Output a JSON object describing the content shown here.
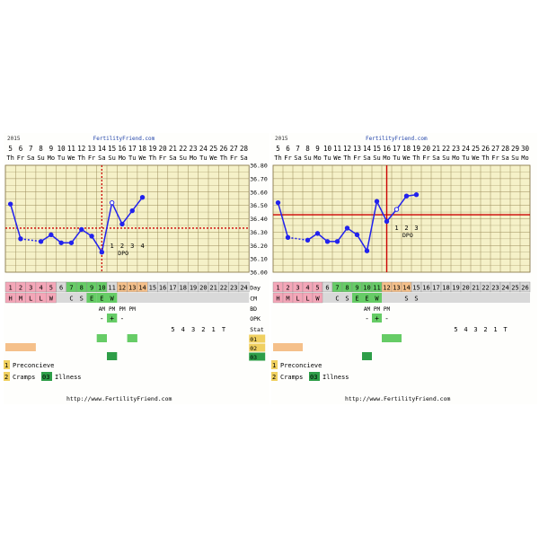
{
  "charts": [
    {
      "year_label": "2015",
      "site_header": "FertilityFriend.com",
      "date_numbers": [
        "5",
        "6",
        "7",
        "8",
        "9",
        "10",
        "11",
        "12",
        "13",
        "14",
        "15",
        "16",
        "17",
        "18",
        "19",
        "20",
        "21",
        "22",
        "23",
        "24",
        "25",
        "26",
        "27",
        "28"
      ],
      "weekdays": [
        "Th",
        "Fr",
        "Sa",
        "Su",
        "Mo",
        "Tu",
        "We",
        "Th",
        "Fr",
        "Sa",
        "Su",
        "Mo",
        "Tu",
        "We",
        "Th",
        "Fr",
        "Sa",
        "Su",
        "Mo",
        "Tu",
        "We",
        "Th",
        "Fr",
        "Sa"
      ],
      "temp_ticks": [
        "36.80",
        "36.70",
        "36.60",
        "36.50",
        "36.40",
        "36.30",
        "36.20",
        "36.10",
        "36.00"
      ],
      "day_numbers": [
        "1",
        "2",
        "3",
        "4",
        "5",
        "6",
        "7",
        "8",
        "9",
        "10",
        "11",
        "12",
        "13",
        "14",
        "15",
        "16",
        "17",
        "18",
        "19",
        "20",
        "21",
        "22",
        "23",
        "24"
      ],
      "row_labels": [
        "Day",
        "CM",
        "BD",
        "OPK",
        "Stat",
        "01",
        "02",
        "03"
      ],
      "menses": [
        "H",
        "M",
        "L",
        "L",
        "W"
      ],
      "cm": [
        "C",
        "S",
        "E",
        "E",
        "W"
      ],
      "bd": [
        "AM",
        "PM",
        "PM",
        "PM"
      ],
      "opk": [
        "-",
        "+",
        "-"
      ],
      "countdown": [
        "5",
        "4",
        "3",
        "2",
        "1",
        "T"
      ],
      "dpo_label": "DPO",
      "dpo_numbers": [
        "1",
        "2",
        "3",
        "4"
      ],
      "legend": {
        "num1": "1",
        "label1": "Preconcieve",
        "num2": "2",
        "label2": "Cramps",
        "num3": "03",
        "label3": "Illness"
      },
      "footer": "http://www.FertilityFriend.com"
    },
    {
      "year_label": "2015",
      "site_header": "FertilityFriend.com",
      "date_numbers": [
        "5",
        "6",
        "7",
        "8",
        "9",
        "10",
        "11",
        "12",
        "13",
        "14",
        "15",
        "16",
        "17",
        "18",
        "19",
        "20",
        "21",
        "22",
        "23",
        "24",
        "25",
        "26",
        "27",
        "28",
        "29",
        "30"
      ],
      "weekdays": [
        "Th",
        "Fr",
        "Sa",
        "Su",
        "Mo",
        "Tu",
        "We",
        "Th",
        "Fr",
        "Sa",
        "Su",
        "Mo",
        "Tu",
        "We",
        "Th",
        "Fr",
        "Sa",
        "Su",
        "Mo",
        "Tu",
        "We",
        "Th",
        "Fr",
        "Sa",
        "Su",
        "Mo"
      ],
      "temp_ticks": [],
      "day_numbers": [
        "1",
        "2",
        "3",
        "4",
        "5",
        "6",
        "7",
        "8",
        "9",
        "10",
        "11",
        "12",
        "13",
        "14",
        "15",
        "16",
        "17",
        "18",
        "19",
        "20",
        "21",
        "22",
        "23",
        "24",
        "25",
        "26"
      ],
      "row_labels": [],
      "menses": [
        "H",
        "M",
        "L",
        "L",
        "W"
      ],
      "cm": [
        "C",
        "S",
        "E",
        "E",
        "W",
        "",
        "",
        "S",
        "S"
      ],
      "bd": [
        "AM",
        "PM",
        "PM"
      ],
      "opk": [
        "-",
        "+",
        "-"
      ],
      "countdown": [
        "5",
        "4",
        "3",
        "2",
        "1",
        "T"
      ],
      "dpo_label": "DPO",
      "dpo_numbers": [
        "1",
        "2",
        "3"
      ],
      "legend": {
        "num1": "1",
        "label1": "Preconcieve",
        "num2": "2",
        "label2": "Cramps",
        "num3": "03",
        "label3": "Illness"
      },
      "footer": "http://www.FertilityFriend.com"
    }
  ],
  "colors": {
    "temp_line": "#2222ee",
    "coverline": "#cc0000",
    "menses": "#f4a6b8",
    "fertile": "#66cc66",
    "luteal": "#f5c08a",
    "grid_bg": "#f5f1c8",
    "row_bg": "#d9d9d9"
  },
  "chart_data": [
    {
      "type": "line",
      "x": [
        1,
        2,
        3,
        4,
        5,
        6,
        7,
        8,
        9,
        10,
        11,
        12,
        13,
        14
      ],
      "values": [
        36.51,
        36.25,
        null,
        36.23,
        36.28,
        36.22,
        36.22,
        36.32,
        36.27,
        36.15,
        36.52,
        36.36,
        36.46,
        36.56
      ],
      "ylim": [
        36.0,
        36.8
      ],
      "coverline": 36.33,
      "ovulation_day": 10,
      "grid": true
    },
    {
      "type": "line",
      "x": [
        1,
        2,
        3,
        4,
        5,
        6,
        7,
        8,
        9,
        10,
        11,
        12,
        13,
        14,
        15
      ],
      "values": [
        36.52,
        36.26,
        null,
        36.24,
        36.29,
        36.23,
        36.23,
        36.33,
        36.28,
        36.16,
        36.53,
        36.38,
        36.47,
        36.57,
        36.58
      ],
      "ylim": [
        36.0,
        36.8
      ],
      "coverline": 36.43,
      "ovulation_day": 12,
      "grid": true
    }
  ]
}
